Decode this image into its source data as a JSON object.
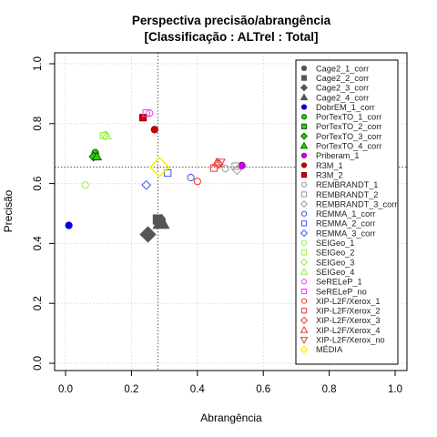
{
  "chart_data": {
    "type": "scatter",
    "title": "Perspectiva precisão/abrangência",
    "subtitle": "[Classificação : ALTrel : Total]",
    "xlabel": "Abrangência",
    "ylabel": "Precisão",
    "xlim": [
      0,
      1
    ],
    "ylim": [
      0,
      1
    ],
    "xticks": [
      "0.0",
      "0.2",
      "0.4",
      "0.6",
      "0.8",
      "1.0"
    ],
    "yticks": [
      "0.0",
      "0.2",
      "0.4",
      "0.6",
      "0.8",
      "1.0"
    ],
    "grid": true,
    "legend_position": "right",
    "reference_lines": {
      "x": 0.28,
      "y": 0.655
    },
    "series": [
      {
        "name": "Cage2_1_corr",
        "shape": "circle",
        "color": "#555555",
        "fill": "#555555",
        "points": [
          [
            0.285,
            0.475
          ]
        ],
        "size": 1.8
      },
      {
        "name": "Cage2_2_corr",
        "shape": "square",
        "color": "#555555",
        "fill": "#555555",
        "points": [
          [
            0.28,
            0.48
          ]
        ],
        "size": 1.4
      },
      {
        "name": "Cage2_3_corr",
        "shape": "diamond",
        "color": "#555555",
        "fill": "#555555",
        "points": [
          [
            0.25,
            0.43
          ]
        ],
        "size": 1.8
      },
      {
        "name": "Cage2_4_corr",
        "shape": "triangle",
        "color": "#555555",
        "fill": "#555555",
        "points": [
          [
            0.29,
            0.47
          ]
        ],
        "size": 1.8
      },
      {
        "name": "DobrEM_1_corr",
        "shape": "circle",
        "color": "#0000dd",
        "fill": "#0000dd",
        "points": [
          [
            0.01,
            0.46
          ]
        ]
      },
      {
        "name": "PorTexTO_1_corr",
        "shape": "circle",
        "color": "#006600",
        "fill": "#33cc00",
        "points": [
          [
            0.09,
            0.703
          ]
        ]
      },
      {
        "name": "PorTexTO_2_corr",
        "shape": "square",
        "color": "#006600",
        "fill": "#33cc00",
        "points": [
          [
            0.09,
            0.69
          ]
        ]
      },
      {
        "name": "PorTexTO_3_corr",
        "shape": "diamond",
        "color": "#006600",
        "fill": "#33cc00",
        "points": [
          [
            0.085,
            0.69
          ]
        ]
      },
      {
        "name": "PorTexTO_4_corr",
        "shape": "triangle",
        "color": "#006600",
        "fill": "#33cc00",
        "points": [
          [
            0.095,
            0.69
          ]
        ]
      },
      {
        "name": "Priberam_1",
        "shape": "circle",
        "color": "#990099",
        "fill": "#cc00ff",
        "points": [
          [
            0.535,
            0.66
          ]
        ]
      },
      {
        "name": "R3M_1",
        "shape": "circle",
        "color": "#990000",
        "fill": "#cc0000",
        "points": [
          [
            0.27,
            0.78
          ]
        ]
      },
      {
        "name": "R3M_2",
        "shape": "square",
        "color": "#990000",
        "fill": "#cc0000",
        "points": [
          [
            0.235,
            0.82
          ]
        ]
      },
      {
        "name": "REMBRANDT_1",
        "shape": "circle",
        "color": "#999999",
        "fill": "none",
        "points": [
          [
            0.485,
            0.65
          ]
        ]
      },
      {
        "name": "REMBRANDT_2",
        "shape": "square",
        "color": "#999999",
        "fill": "none",
        "points": [
          [
            0.515,
            0.658
          ]
        ]
      },
      {
        "name": "REMBRANDT_3_corr",
        "shape": "diamond",
        "color": "#999999",
        "fill": "none",
        "points": [
          [
            0.52,
            0.645
          ]
        ]
      },
      {
        "name": "REMMA_1_corr",
        "shape": "circle",
        "color": "#3355ff",
        "fill": "none",
        "points": [
          [
            0.38,
            0.62
          ]
        ]
      },
      {
        "name": "REMMA_2_corr",
        "shape": "square",
        "color": "#3355ff",
        "fill": "none",
        "points": [
          [
            0.31,
            0.635
          ]
        ]
      },
      {
        "name": "REMMA_3_corr",
        "shape": "diamond",
        "color": "#3355ff",
        "fill": "none",
        "points": [
          [
            0.245,
            0.595
          ]
        ]
      },
      {
        "name": "SEIGeo_1",
        "shape": "circle",
        "color": "#99ee44",
        "fill": "none",
        "points": [
          [
            0.06,
            0.595
          ]
        ]
      },
      {
        "name": "SEIGeo_2",
        "shape": "square",
        "color": "#99ee44",
        "fill": "none",
        "points": [
          [
            0.115,
            0.76
          ]
        ]
      },
      {
        "name": "SEIGeo_3",
        "shape": "diamond",
        "color": "#99ee44",
        "fill": "none",
        "points": [
          [
            0.12,
            0.76
          ]
        ]
      },
      {
        "name": "SEIGeo_4",
        "shape": "triangle",
        "color": "#99ee44",
        "fill": "none",
        "points": [
          [
            0.125,
            0.76
          ]
        ]
      },
      {
        "name": "SeRELeP_1",
        "shape": "circle",
        "color": "#ee44ee",
        "fill": "none",
        "points": [
          [
            0.255,
            0.835
          ]
        ]
      },
      {
        "name": "SeRELeP_no",
        "shape": "square",
        "color": "#ee44ee",
        "fill": "none",
        "points": [
          [
            0.245,
            0.835
          ]
        ]
      },
      {
        "name": "XIP-L2F/Xerox_1",
        "shape": "circle",
        "color": "#ee3333",
        "fill": "none",
        "points": [
          [
            0.4,
            0.607
          ]
        ]
      },
      {
        "name": "XIP-L2F/Xerox_2",
        "shape": "square",
        "color": "#ee3333",
        "fill": "none",
        "points": [
          [
            0.45,
            0.652
          ]
        ]
      },
      {
        "name": "XIP-L2F/Xerox_3",
        "shape": "diamond",
        "color": "#ee3333",
        "fill": "none",
        "points": [
          [
            0.465,
            0.665
          ]
        ]
      },
      {
        "name": "XIP-L2F/Xerox_4",
        "shape": "triangle",
        "color": "#ee3333",
        "fill": "none",
        "points": [
          [
            0.46,
            0.67
          ]
        ]
      },
      {
        "name": "XIP-L2F/Xerox_no",
        "shape": "triangle-down",
        "color": "#ee3333",
        "fill": "none",
        "points": [
          [
            0.47,
            0.67
          ]
        ]
      },
      {
        "name": "MÉDIA",
        "shape": "diamond",
        "color": "#ffee00",
        "fill": "none",
        "points": [
          [
            0.285,
            0.655
          ]
        ],
        "size": 2.2
      }
    ]
  }
}
